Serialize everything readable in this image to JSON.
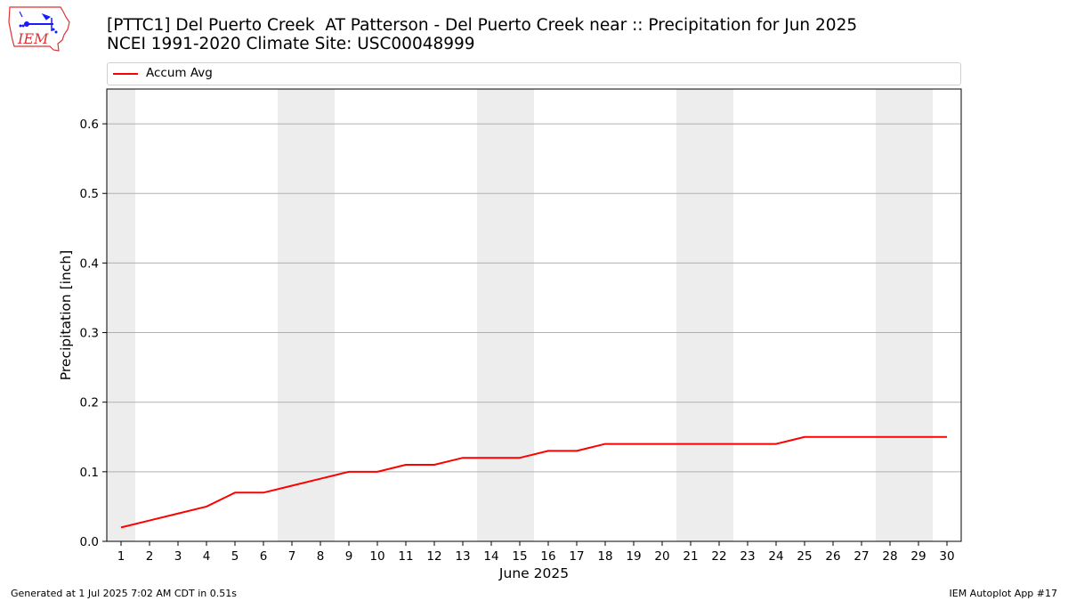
{
  "header": {
    "title_line1": "[PTTC1] Del Puerto Creek  AT Patterson - Del Puerto Creek near :: Precipitation for Jun 2025",
    "title_line2": "NCEI 1991-2020 Climate Site: USC00048999",
    "logo_text": "IEM"
  },
  "legend": {
    "label": "Accum Avg"
  },
  "footer": {
    "left": "Generated at 1 Jul 2025 7:02 AM CDT in 0.51s",
    "right": "IEM Autoplot App #17"
  },
  "colors": {
    "series": "#ff0000",
    "weekend_band": "#ededed",
    "grid": "#b0b0b0"
  },
  "chart_data": {
    "type": "line",
    "title": "[PTTC1] Del Puerto Creek  AT Patterson - Del Puerto Creek near :: Precipitation for Jun 2025",
    "subtitle": "NCEI 1991-2020 Climate Site: USC00048999",
    "xlabel": "June 2025",
    "ylabel": "Precipitation [inch]",
    "x": [
      1,
      2,
      3,
      4,
      5,
      6,
      7,
      8,
      9,
      10,
      11,
      12,
      13,
      14,
      15,
      16,
      17,
      18,
      19,
      20,
      21,
      22,
      23,
      24,
      25,
      26,
      27,
      28,
      29,
      30
    ],
    "xlim": [
      0.5,
      30.5
    ],
    "ylim": [
      0,
      0.65
    ],
    "yticks": [
      0.0,
      0.1,
      0.2,
      0.3,
      0.4,
      0.5,
      0.6
    ],
    "ytick_labels": [
      "0.0",
      "0.1",
      "0.2",
      "0.3",
      "0.4",
      "0.5",
      "0.6"
    ],
    "grid": "horizontal",
    "legend_position": "top",
    "weekend_bands": [
      [
        0.5,
        1.5
      ],
      [
        6.5,
        8.5
      ],
      [
        13.5,
        15.5
      ],
      [
        20.5,
        22.5
      ],
      [
        27.5,
        29.5
      ]
    ],
    "series": [
      {
        "name": "Accum Avg",
        "color": "#ff0000",
        "values": [
          0.02,
          0.03,
          0.04,
          0.05,
          0.07,
          0.07,
          0.08,
          0.09,
          0.1,
          0.1,
          0.11,
          0.11,
          0.12,
          0.12,
          0.12,
          0.13,
          0.13,
          0.14,
          0.14,
          0.14,
          0.14,
          0.14,
          0.14,
          0.14,
          0.15,
          0.15,
          0.15,
          0.15,
          0.15,
          0.15
        ]
      }
    ]
  }
}
